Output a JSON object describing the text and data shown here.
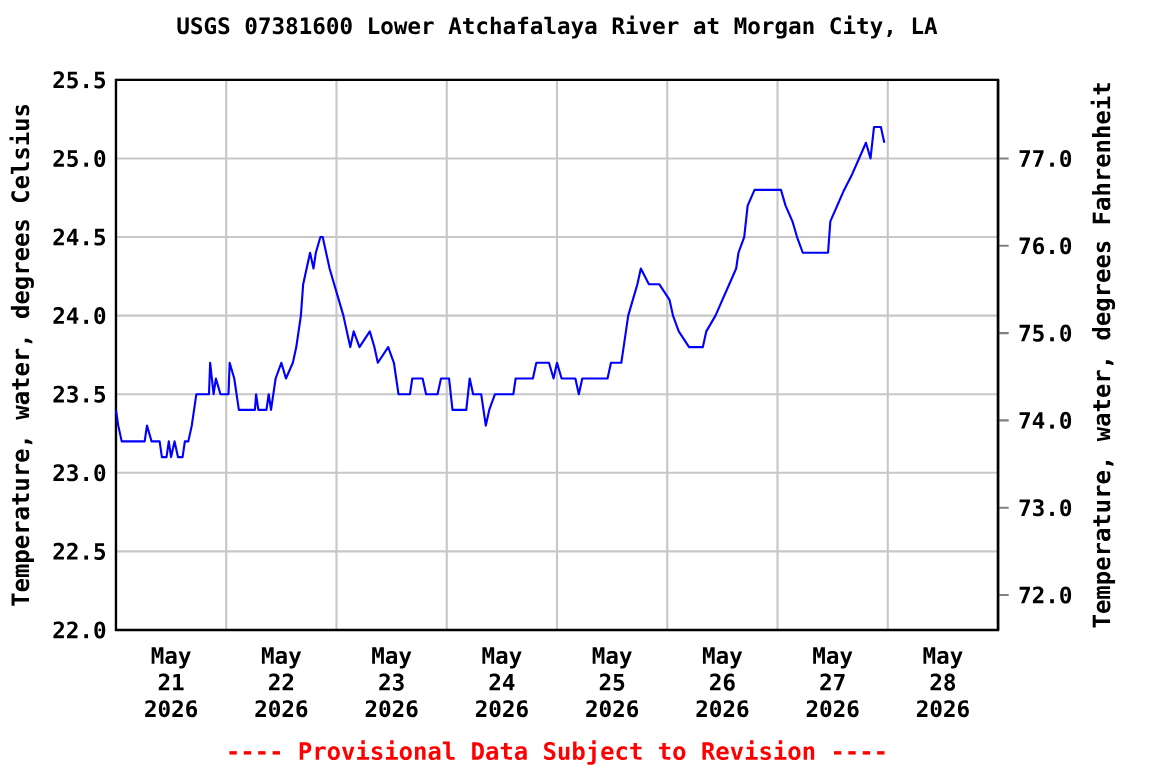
{
  "chart_data": {
    "type": "line",
    "title": "USGS 07381600 Lower Atchafalaya River at Morgan City, LA",
    "ylabel": "Temperature, water, degrees Celsius",
    "y2label": "Temperature, water, degrees Fahrenheit",
    "annotations": [
      "---- Provisional Data Subject to Revision ----"
    ],
    "xlim": [
      "2026-05-21T00:00",
      "2026-05-29T00:00"
    ],
    "xticks": [
      {
        "value": "2026-05-21T12:00",
        "label": "May 21 2026"
      },
      {
        "value": "2026-05-22T00:00",
        "label": null
      },
      {
        "value": "2026-05-22T12:00",
        "label": "May 22 2026"
      },
      {
        "value": "2026-05-23T00:00",
        "label": null
      },
      {
        "value": "2026-05-23T12:00",
        "label": "May 23 2026"
      },
      {
        "value": "2026-05-24T00:00",
        "label": null
      },
      {
        "value": "2026-05-24T12:00",
        "label": "May 24 2026"
      },
      {
        "value": "2026-05-25T00:00",
        "label": null
      },
      {
        "value": "2026-05-25T12:00",
        "label": "May 25 2026"
      },
      {
        "value": "2026-05-26T00:00",
        "label": null
      },
      {
        "value": "2026-05-26T12:00",
        "label": "May 26 2026"
      },
      {
        "value": "2026-05-27T00:00",
        "label": null
      },
      {
        "value": "2026-05-27T12:00",
        "label": "May 27 2026"
      },
      {
        "value": "2026-05-28T00:00",
        "label": null
      },
      {
        "value": "2026-05-28T12:00",
        "label": "May 28 2026"
      }
    ],
    "ylim": [
      22.0,
      25.5
    ],
    "yticks": [
      {
        "value": 22.0,
        "label": "22.0"
      },
      {
        "value": 22.5,
        "label": "22.5"
      },
      {
        "value": 23.0,
        "label": "23.0"
      },
      {
        "value": 23.5,
        "label": "23.5"
      },
      {
        "value": 24.0,
        "label": "24.0"
      },
      {
        "value": 24.5,
        "label": "24.5"
      },
      {
        "value": 25.0,
        "label": "25.0"
      },
      {
        "value": 25.5,
        "label": "25.5"
      }
    ],
    "y2lim": [
      71.6,
      77.9
    ],
    "y2ticks": [
      {
        "value": 72,
        "label": "72.0"
      },
      {
        "value": 73,
        "label": "73.0"
      },
      {
        "value": 74,
        "label": "74.0"
      },
      {
        "value": 75,
        "label": "75.0"
      },
      {
        "value": 76,
        "label": "76.0"
      },
      {
        "value": 77,
        "label": "77.0"
      }
    ],
    "grid": true,
    "marker": "none",
    "line_style": "solid",
    "series": [
      {
        "color": "#0000ff",
        "x": [
          "2026-05-21T00:00",
          "2026-05-21T00:30",
          "2026-05-21T01:15",
          "2026-05-21T06:15",
          "2026-05-21T06:45",
          "2026-05-21T07:45",
          "2026-05-21T09:30",
          "2026-05-21T10:00",
          "2026-05-21T11:00",
          "2026-05-21T11:30",
          "2026-05-21T12:00",
          "2026-05-21T12:45",
          "2026-05-21T13:30",
          "2026-05-21T14:30",
          "2026-05-21T15:00",
          "2026-05-21T15:45",
          "2026-05-21T16:30",
          "2026-05-21T17:00",
          "2026-05-21T17:30",
          "2026-05-21T20:15",
          "2026-05-21T20:30",
          "2026-05-21T21:15",
          "2026-05-21T21:45",
          "2026-05-21T22:45",
          "2026-05-22T00:30",
          "2026-05-22T00:45",
          "2026-05-22T01:45",
          "2026-05-22T02:15",
          "2026-05-22T02:45",
          "2026-05-22T06:15",
          "2026-05-22T06:30",
          "2026-05-22T07:00",
          "2026-05-22T08:45",
          "2026-05-22T09:15",
          "2026-05-22T09:45",
          "2026-05-22T10:45",
          "2026-05-22T12:00",
          "2026-05-22T13:00",
          "2026-05-22T14:30",
          "2026-05-22T15:15",
          "2026-05-22T16:15",
          "2026-05-22T16:45",
          "2026-05-22T17:30",
          "2026-05-22T18:15",
          "2026-05-22T19:00",
          "2026-05-22T19:30",
          "2026-05-22T20:30",
          "2026-05-22T21:00",
          "2026-05-22T21:45",
          "2026-05-22T22:30",
          "2026-05-22T23:30",
          "2026-05-23T00:30",
          "2026-05-23T01:30",
          "2026-05-23T02:15",
          "2026-05-23T03:00",
          "2026-05-23T03:45",
          "2026-05-23T05:00",
          "2026-05-23T07:15",
          "2026-05-23T08:15",
          "2026-05-23T09:00",
          "2026-05-23T11:15",
          "2026-05-23T12:30",
          "2026-05-23T13:00",
          "2026-05-23T13:30",
          "2026-05-23T16:00",
          "2026-05-23T16:30",
          "2026-05-23T18:45",
          "2026-05-23T19:30",
          "2026-05-23T22:00",
          "2026-05-23T22:45",
          "2026-05-24T00:30",
          "2026-05-24T01:15",
          "2026-05-24T04:15",
          "2026-05-24T05:00",
          "2026-05-24T05:45",
          "2026-05-24T07:30",
          "2026-05-24T08:30",
          "2026-05-24T09:15",
          "2026-05-24T10:30",
          "2026-05-24T14:30",
          "2026-05-24T15:00",
          "2026-05-24T18:45",
          "2026-05-24T19:30",
          "2026-05-24T22:15",
          "2026-05-24T23:15",
          "2026-05-25T00:00",
          "2026-05-25T01:00",
          "2026-05-25T04:00",
          "2026-05-25T04:45",
          "2026-05-25T05:30",
          "2026-05-25T11:00",
          "2026-05-25T11:45",
          "2026-05-25T14:00",
          "2026-05-25T14:30",
          "2026-05-25T15:30",
          "2026-05-25T16:30",
          "2026-05-25T17:30",
          "2026-05-25T18:15",
          "2026-05-25T20:00",
          "2026-05-25T22:15",
          "2026-05-26T00:30",
          "2026-05-26T01:15",
          "2026-05-26T02:30",
          "2026-05-26T04:45",
          "2026-05-26T07:45",
          "2026-05-26T08:30",
          "2026-05-26T10:30",
          "2026-05-26T12:00",
          "2026-05-26T13:30",
          "2026-05-26T15:00",
          "2026-05-26T15:30",
          "2026-05-26T16:45",
          "2026-05-26T17:30",
          "2026-05-26T19:00",
          "2026-05-27T00:45",
          "2026-05-27T01:45",
          "2026-05-27T03:15",
          "2026-05-27T04:15",
          "2026-05-27T05:30",
          "2026-05-27T11:00",
          "2026-05-27T11:30",
          "2026-05-27T14:30",
          "2026-05-27T16:15",
          "2026-05-27T17:45",
          "2026-05-27T19:15",
          "2026-05-27T20:15",
          "2026-05-27T21:00",
          "2026-05-27T22:30",
          "2026-05-27T23:15"
        ],
        "values": [
          23.4,
          23.3,
          23.2,
          23.2,
          23.3,
          23.2,
          23.2,
          23.1,
          23.1,
          23.2,
          23.1,
          23.2,
          23.1,
          23.1,
          23.2,
          23.2,
          23.3,
          23.4,
          23.5,
          23.5,
          23.7,
          23.5,
          23.6,
          23.5,
          23.5,
          23.7,
          23.6,
          23.5,
          23.4,
          23.4,
          23.5,
          23.4,
          23.4,
          23.5,
          23.4,
          23.6,
          23.7,
          23.6,
          23.7,
          23.8,
          24.0,
          24.2,
          24.3,
          24.4,
          24.3,
          24.4,
          24.5,
          24.5,
          24.4,
          24.3,
          24.2,
          24.1,
          24.0,
          23.9,
          23.8,
          23.9,
          23.8,
          23.9,
          23.8,
          23.7,
          23.8,
          23.7,
          23.6,
          23.5,
          23.5,
          23.6,
          23.6,
          23.5,
          23.5,
          23.6,
          23.6,
          23.4,
          23.4,
          23.6,
          23.5,
          23.5,
          23.3,
          23.4,
          23.5,
          23.5,
          23.6,
          23.6,
          23.7,
          23.7,
          23.6,
          23.7,
          23.6,
          23.6,
          23.5,
          23.6,
          23.6,
          23.7,
          23.7,
          23.8,
          24.0,
          24.1,
          24.2,
          24.3,
          24.2,
          24.2,
          24.1,
          24.0,
          23.9,
          23.8,
          23.8,
          23.9,
          24.0,
          24.1,
          24.2,
          24.3,
          24.4,
          24.5,
          24.7,
          24.8,
          24.8,
          24.7,
          24.6,
          24.5,
          24.4,
          24.4,
          24.6,
          24.8,
          24.9,
          25.0,
          25.1,
          25.0,
          25.2,
          25.2,
          25.1
        ]
      }
    ]
  }
}
